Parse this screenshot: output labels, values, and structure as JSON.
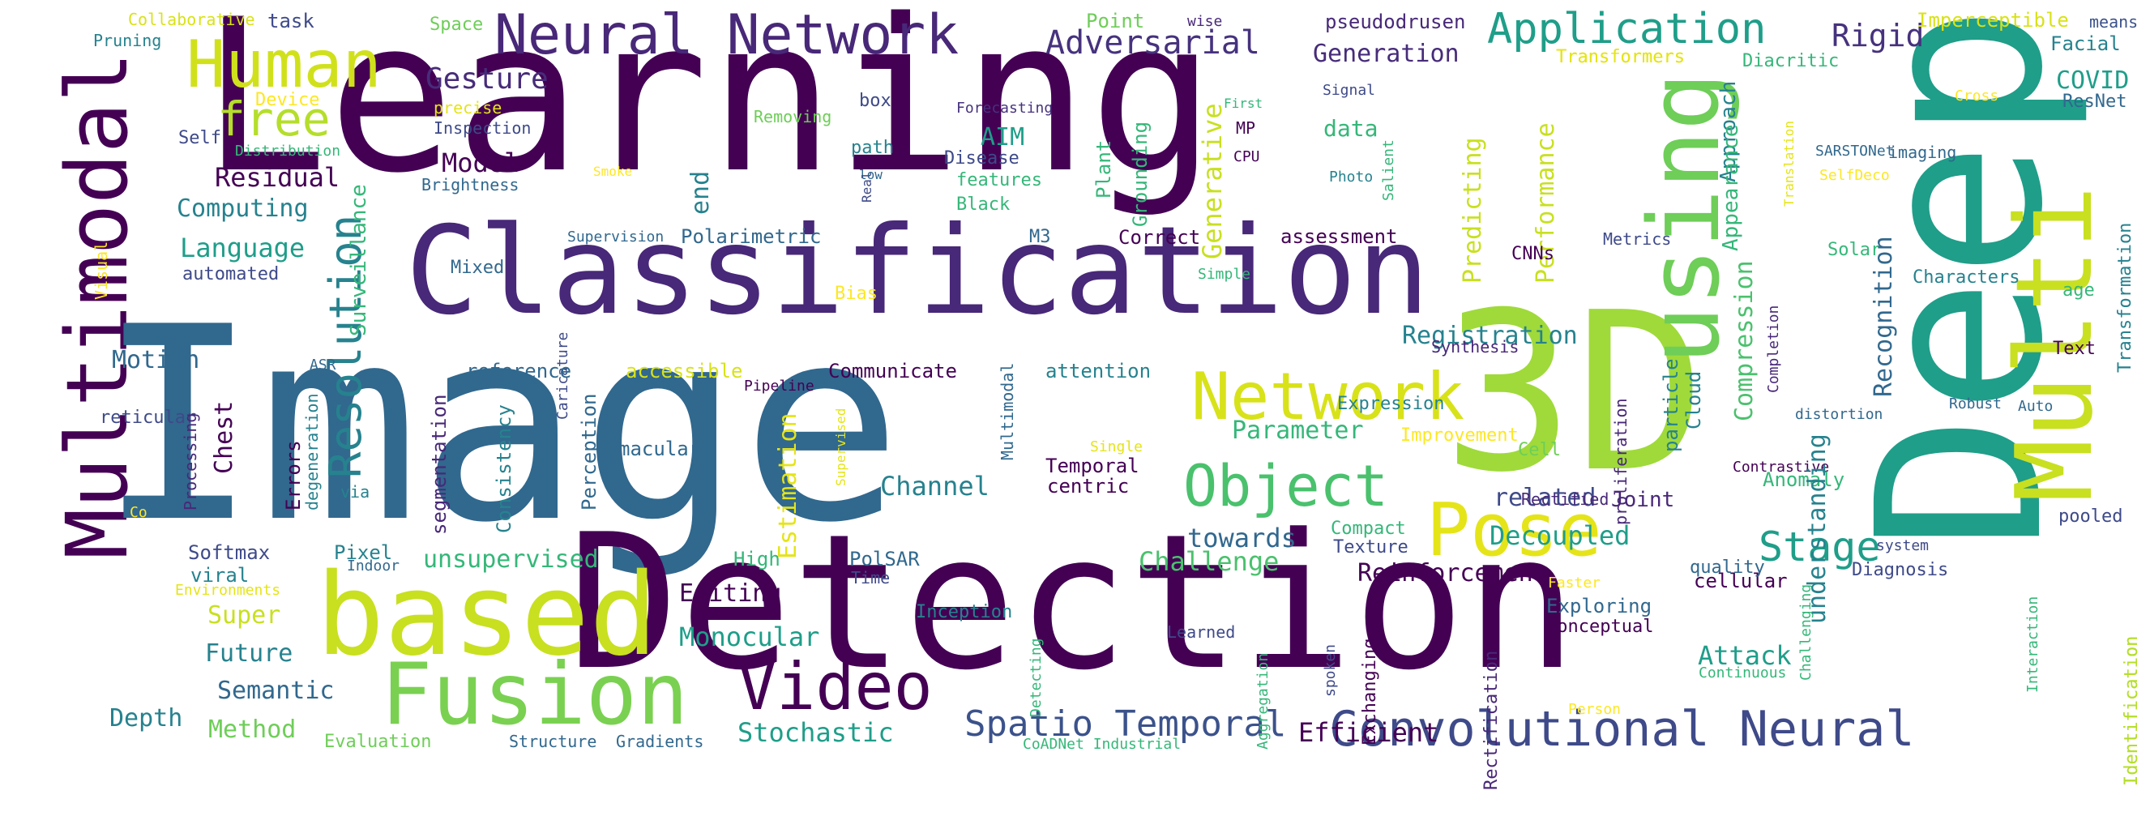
{
  "palette": {
    "dark_purple": "#440154",
    "indigo": "#482878",
    "slate_blue": "#3e4a89",
    "steel_blue": "#31688e",
    "teal": "#26828e",
    "green_teal": "#1f9e89",
    "sea_green": "#35b779",
    "light_green": "#6ece58",
    "yellow_green": "#b5de2b",
    "yellow": "#fde725"
  },
  "words": [
    {
      "text": "Learning",
      "color": "#440154"
    },
    {
      "text": "Image",
      "color": "#31688e"
    },
    {
      "text": "Detection",
      "color": "#440154"
    },
    {
      "text": "Deep",
      "color": "#1f9e89"
    },
    {
      "text": "Classification",
      "color": "#482878"
    },
    {
      "text": "3D",
      "color": "#9fda3a"
    },
    {
      "text": "Multi",
      "color": "#c8e020"
    },
    {
      "text": "using",
      "color": "#6ece58"
    },
    {
      "text": "Multimodal",
      "color": "#440154"
    },
    {
      "text": "based",
      "color": "#c8e020"
    },
    {
      "text": "Fusion",
      "color": "#7ad151"
    },
    {
      "text": "Neural Network",
      "color": "#482878"
    },
    {
      "text": "Human",
      "color": "#d0e11c"
    },
    {
      "text": "Network",
      "color": "#d8e219"
    },
    {
      "text": "Object",
      "color": "#4ac16d"
    },
    {
      "text": "Pose",
      "color": "#e5e419"
    },
    {
      "text": "Video",
      "color": "#440154"
    },
    {
      "text": "Convolutional Neural",
      "color": "#3e4a89"
    },
    {
      "text": "Application",
      "color": "#1f9e89"
    },
    {
      "text": "Resolution",
      "color": "#26828e"
    },
    {
      "text": "Spatio Temporal",
      "color": "#3b528b"
    },
    {
      "text": "Stage",
      "color": "#1f9e89"
    },
    {
      "text": "free",
      "color": "#b5de2b"
    },
    {
      "text": "Adversarial",
      "color": "#46327e"
    },
    {
      "text": "Gesture",
      "color": "#472c7a"
    },
    {
      "text": "Generation",
      "color": "#472c7a"
    },
    {
      "text": "Rigid",
      "color": "#46327e"
    },
    {
      "text": "COVID",
      "color": "#1f9e89"
    },
    {
      "text": "Facial",
      "color": "#26828e"
    },
    {
      "text": "ResNet",
      "color": "#31688e"
    },
    {
      "text": "Imperceptible",
      "color": "#d8e219"
    },
    {
      "text": "means",
      "color": "#3b528b"
    },
    {
      "text": "Diacritic",
      "color": "#35b779"
    },
    {
      "text": "Transformers",
      "color": "#e5e419"
    },
    {
      "text": "pseudodrusen",
      "color": "#482878"
    },
    {
      "text": "wise",
      "color": "#482878"
    },
    {
      "text": "Point",
      "color": "#6ece58"
    },
    {
      "text": "Space",
      "color": "#6ece58"
    },
    {
      "text": "task",
      "color": "#3e4a89"
    },
    {
      "text": "Collaborative",
      "color": "#d8e219"
    },
    {
      "text": "Pruning",
      "color": "#26828e"
    },
    {
      "text": "Device",
      "color": "#fde725"
    },
    {
      "text": "Self",
      "color": "#3e4a89"
    },
    {
      "text": "Distribution",
      "color": "#35b779"
    },
    {
      "text": "Residual",
      "color": "#440154"
    },
    {
      "text": "Computing",
      "color": "#26828e"
    },
    {
      "text": "Inspection",
      "color": "#3e4a89"
    },
    {
      "text": "Brightness",
      "color": "#31688e"
    },
    {
      "text": "Model",
      "color": "#440154"
    },
    {
      "text": "Surveillance",
      "color": "#35b779"
    },
    {
      "text": "precise",
      "color": "#e5e419"
    },
    {
      "text": "Removing",
      "color": "#6ece58"
    },
    {
      "text": "Smoke",
      "color": "#fde725"
    },
    {
      "text": "box",
      "color": "#3e4a89"
    },
    {
      "text": "path",
      "color": "#26828e"
    },
    {
      "text": "low",
      "color": "#31688e"
    },
    {
      "text": "Forecasting",
      "color": "#46327e"
    },
    {
      "text": "AIM",
      "color": "#1f9e89"
    },
    {
      "text": "Disease",
      "color": "#3e4a89"
    },
    {
      "text": "features",
      "color": "#35b779"
    },
    {
      "text": "Black",
      "color": "#35b779"
    },
    {
      "text": "MP",
      "color": "#440154"
    },
    {
      "text": "CPU",
      "color": "#440154"
    },
    {
      "text": "First",
      "color": "#35b779"
    },
    {
      "text": "Signal",
      "color": "#3e4a89"
    },
    {
      "text": "Photo",
      "color": "#26828e"
    },
    {
      "text": "data",
      "color": "#35b779"
    },
    {
      "text": "Approach",
      "color": "#26828e"
    },
    {
      "text": "Appearance",
      "color": "#35b779"
    },
    {
      "text": "Completion",
      "color": "#482878"
    },
    {
      "text": "Translation",
      "color": "#e5e419"
    },
    {
      "text": "Cross",
      "color": "#fde725"
    },
    {
      "text": "SelfDeco",
      "color": "#fde725"
    },
    {
      "text": "SARSTONet",
      "color": "#31688e"
    },
    {
      "text": "imaging",
      "color": "#31688e"
    },
    {
      "text": "Solar",
      "color": "#35b779"
    },
    {
      "text": "Transformation",
      "color": "#26828e"
    },
    {
      "text": "Characters",
      "color": "#26828e"
    },
    {
      "text": "age",
      "color": "#35b779"
    },
    {
      "text": "Text",
      "color": "#440154"
    },
    {
      "text": "Robust",
      "color": "#31688e"
    },
    {
      "text": "Auto",
      "color": "#31688e"
    },
    {
      "text": "distortion",
      "color": "#31688e"
    },
    {
      "text": "Contrastive",
      "color": "#440154"
    },
    {
      "text": "Anomaly",
      "color": "#35b779"
    },
    {
      "text": "pooled",
      "color": "#3e4a89"
    },
    {
      "text": "system",
      "color": "#3e4a89"
    },
    {
      "text": "Diagnosis",
      "color": "#3e4a89"
    },
    {
      "text": "Identification",
      "color": "#b5de2b"
    },
    {
      "text": "Interaction",
      "color": "#35b779"
    },
    {
      "text": "Challenging",
      "color": "#35b779"
    },
    {
      "text": "Continuous",
      "color": "#35b779"
    },
    {
      "text": "Person",
      "color": "#fde725"
    },
    {
      "text": "Faster",
      "color": "#fde725"
    },
    {
      "text": "cellular",
      "color": "#440154"
    },
    {
      "text": "Exploring",
      "color": "#31688e"
    },
    {
      "text": "Attack",
      "color": "#1f9e89"
    },
    {
      "text": "Conceptual",
      "color": "#440154"
    },
    {
      "text": "quality",
      "color": "#31688e"
    },
    {
      "text": "Language",
      "color": "#1f9e89"
    },
    {
      "text": "Visual",
      "color": "#fde725"
    },
    {
      "text": "automated",
      "color": "#3e4a89"
    },
    {
      "text": "ASR",
      "color": "#31688e"
    },
    {
      "text": "Motion",
      "color": "#31688e"
    },
    {
      "text": "reticular",
      "color": "#3e4a89"
    },
    {
      "text": "Chest",
      "color": "#440154"
    },
    {
      "text": "Processing",
      "color": "#482878"
    },
    {
      "text": "degeneration",
      "color": "#26828e"
    },
    {
      "text": "Errors",
      "color": "#440154"
    },
    {
      "text": "via",
      "color": "#26828e"
    },
    {
      "text": "Co",
      "color": "#fde725"
    },
    {
      "text": "Softmax",
      "color": "#3e4a89"
    },
    {
      "text": "viral",
      "color": "#26828e"
    },
    {
      "text": "Environments",
      "color": "#e5e419"
    },
    {
      "text": "Pixel",
      "color": "#26828e"
    },
    {
      "text": "Indoor",
      "color": "#31688e"
    },
    {
      "text": "Super",
      "color": "#c8e020"
    },
    {
      "text": "Future",
      "color": "#26828e"
    },
    {
      "text": "Semantic",
      "color": "#31688e"
    },
    {
      "text": "Depth",
      "color": "#26828e"
    },
    {
      "text": "Method",
      "color": "#6ece58"
    },
    {
      "text": "Evaluation",
      "color": "#6ece58"
    },
    {
      "text": "Structure",
      "color": "#31688e"
    },
    {
      "text": "Gradients",
      "color": "#31688e"
    },
    {
      "text": "Stochastic",
      "color": "#1f9e89"
    },
    {
      "text": "Monocular",
      "color": "#1f9e89"
    },
    {
      "text": "Editing",
      "color": "#440154"
    },
    {
      "text": "unsupervised",
      "color": "#35b779"
    },
    {
      "text": "Parameter",
      "color": "#35b779"
    },
    {
      "text": "Channel",
      "color": "#26828e"
    },
    {
      "text": "Challenge",
      "color": "#4ac16d"
    },
    {
      "text": "towards",
      "color": "#31688e"
    },
    {
      "text": "Reinforcement",
      "color": "#440154"
    },
    {
      "text": "Decoupled",
      "color": "#1f9e89"
    },
    {
      "text": "related",
      "color": "#3e4a89"
    },
    {
      "text": "understanding",
      "color": "#26828e"
    },
    {
      "text": "Recognition",
      "color": "#31688e"
    },
    {
      "text": "Compression",
      "color": "#4ac16d"
    },
    {
      "text": "particle",
      "color": "#26828e"
    },
    {
      "text": "Cloud",
      "color": "#26828e"
    },
    {
      "text": "proliferation",
      "color": "#482878"
    },
    {
      "text": "Rectified",
      "color": "#482878"
    },
    {
      "text": "Joint",
      "color": "#482878"
    },
    {
      "text": "Cell",
      "color": "#6ece58"
    },
    {
      "text": "Improvement",
      "color": "#fde725"
    },
    {
      "text": "Expression",
      "color": "#26828e"
    },
    {
      "text": "Registration",
      "color": "#26828e"
    },
    {
      "text": "Synthesis",
      "color": "#482878"
    },
    {
      "text": "Compact",
      "color": "#35b779"
    },
    {
      "text": "Texture",
      "color": "#3e4a89"
    },
    {
      "text": "Exchanging",
      "color": "#440154"
    },
    {
      "text": "Rectification",
      "color": "#482878"
    },
    {
      "text": "Efficient",
      "color": "#440154"
    },
    {
      "text": "Identification",
      "color": "#b5de2b"
    },
    {
      "text": "CoADNet Industrial",
      "color": "#35b779"
    },
    {
      "text": "spoken",
      "color": "#3e4a89"
    },
    {
      "text": "Aggregation",
      "color": "#35b779"
    },
    {
      "text": "Learned",
      "color": "#3e4a89"
    },
    {
      "text": "Detecting",
      "color": "#35b779"
    },
    {
      "text": "Inception",
      "color": "#26828e"
    },
    {
      "text": "High",
      "color": "#35b779"
    },
    {
      "text": "PolSAR",
      "color": "#31688e"
    },
    {
      "text": "Time",
      "color": "#3e4a89"
    },
    {
      "text": "Multimodal",
      "color": "#31688e"
    },
    {
      "text": "Temporal",
      "color": "#440154"
    },
    {
      "text": "centric",
      "color": "#440154"
    },
    {
      "text": "Single",
      "color": "#e5e419"
    },
    {
      "text": "Estimation",
      "color": "#e5e419"
    },
    {
      "text": "Supervised",
      "color": "#e5e419"
    },
    {
      "text": "macular",
      "color": "#31688e"
    },
    {
      "text": "Perception",
      "color": "#31688e"
    },
    {
      "text": "Consistency",
      "color": "#26828e"
    },
    {
      "text": "segmentation",
      "color": "#482878"
    },
    {
      "text": "Caricature",
      "color": "#3e4a89"
    },
    {
      "text": "Pipeline",
      "color": "#440154"
    },
    {
      "text": "reference",
      "color": "#31688e"
    },
    {
      "text": "accessible",
      "color": "#d8e219"
    },
    {
      "text": "Communicate",
      "color": "#440154"
    },
    {
      "text": "attention",
      "color": "#26828e"
    },
    {
      "text": "Mixed",
      "color": "#31688e"
    },
    {
      "text": "Bias",
      "color": "#fde725"
    },
    {
      "text": "Real",
      "color": "#3e4a89"
    },
    {
      "text": "Supervision",
      "color": "#31688e"
    },
    {
      "text": "Polarimetric",
      "color": "#31688e"
    },
    {
      "text": "M3",
      "color": "#31688e"
    },
    {
      "text": "Correct",
      "color": "#440154"
    },
    {
      "text": "Simple",
      "color": "#35b779"
    },
    {
      "text": "assessment",
      "color": "#440154"
    },
    {
      "text": "Generative",
      "color": "#c8e020"
    },
    {
      "text": "Grounding",
      "color": "#35b779"
    },
    {
      "text": "Plant",
      "color": "#35b779"
    },
    {
      "text": "Predicting",
      "color": "#c8e020"
    },
    {
      "text": "Performance",
      "color": "#c8e020"
    },
    {
      "text": "CNNs",
      "color": "#440154"
    },
    {
      "text": "Metrics",
      "color": "#3e4a89"
    },
    {
      "text": "Salient",
      "color": "#35b779"
    },
    {
      "text": "end",
      "color": "#26828e"
    },
    {
      "text": "Transformers",
      "color": "#e5e419"
    }
  ]
}
